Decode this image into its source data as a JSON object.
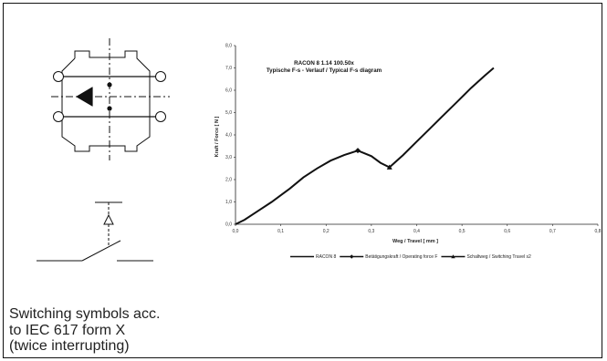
{
  "caption": {
    "lines": [
      "Switching symbols acc.",
      "to IEC 617 form X",
      "(twice interrupting)"
    ]
  },
  "chart_data": {
    "type": "line",
    "title": [
      "RACON 8  1.14 100.50x",
      "Typische F-s - Verlauf / Typical F-s diagram"
    ],
    "xlabel": "Weg / Travel [ mm ]",
    "ylabel": "Kraft / Force [ N ]",
    "xlim": [
      0.0,
      0.8
    ],
    "ylim": [
      0.0,
      8.0
    ],
    "x_ticks": [
      "0,0",
      "0,1",
      "0,2",
      "0,3",
      "0,4",
      "0,5",
      "0,6",
      "0,7",
      "0,8"
    ],
    "y_ticks": [
      "0,0",
      "1,0",
      "2,0",
      "3,0",
      "4,0",
      "5,0",
      "6,0",
      "7,0",
      "8,0"
    ],
    "grid": false,
    "legend_position": "bottom",
    "series": [
      {
        "name": "RACON 8",
        "x": [
          0.0,
          0.02,
          0.05,
          0.08,
          0.1,
          0.12,
          0.15,
          0.18,
          0.21,
          0.24,
          0.27,
          0.3,
          0.32,
          0.34,
          0.37,
          0.4,
          0.43,
          0.46,
          0.49,
          0.52,
          0.55,
          0.57
        ],
        "y": [
          0.0,
          0.2,
          0.6,
          1.0,
          1.3,
          1.6,
          2.1,
          2.5,
          2.85,
          3.1,
          3.3,
          3.05,
          2.75,
          2.55,
          3.1,
          3.7,
          4.3,
          4.9,
          5.5,
          6.1,
          6.65,
          7.0
        ]
      },
      {
        "name": "Betätigungskraft / Operating force F",
        "marker": "diamond",
        "x": [
          0.27
        ],
        "y": [
          3.3
        ]
      },
      {
        "name": "Schaltweg / Switching Travel s2",
        "marker": "triangle",
        "x": [
          0.34
        ],
        "y": [
          2.55
        ]
      }
    ]
  }
}
